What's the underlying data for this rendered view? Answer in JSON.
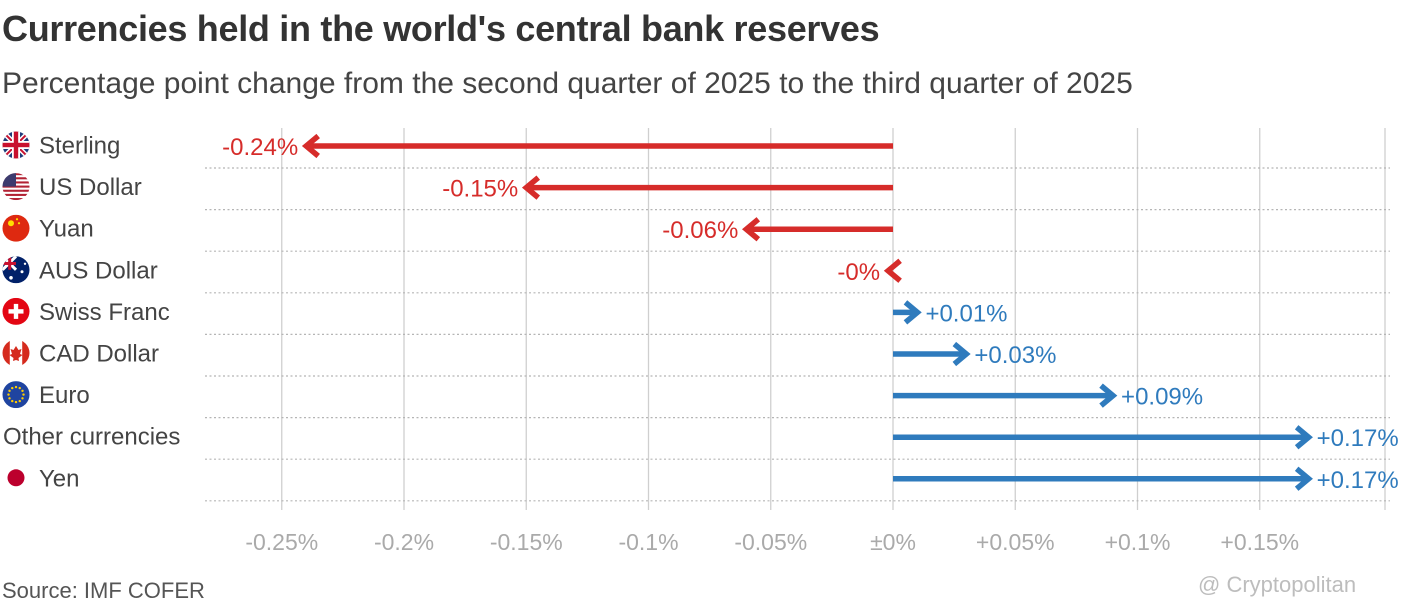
{
  "title": "Currencies held in the world's central bank reserves",
  "subtitle": "Percentage point change from the second quarter of 2025 to the third quarter of 2025",
  "source": "Source: IMF COFER",
  "watermark": "@ Cryptopolitan",
  "colors": {
    "negative": "#d62c2a",
    "positive": "#2f7bbd",
    "grid": "#cfcfcf",
    "tick": "#aaaaaa"
  },
  "chart_data": {
    "type": "bar",
    "orientation": "horizontal",
    "style": "arrow",
    "title": "Currencies held in the world's central bank reserves",
    "subtitle": "Percentage point change from the second quarter of 2025 to the third quarter of 2025",
    "categories": [
      {
        "label": "Sterling",
        "icon": "uk-flag-icon"
      },
      {
        "label": "US Dollar",
        "icon": "us-flag-icon"
      },
      {
        "label": "Yuan",
        "icon": "china-flag-icon"
      },
      {
        "label": "AUS Dollar",
        "icon": "australia-flag-icon"
      },
      {
        "label": "Swiss Franc",
        "icon": "swiss-flag-icon"
      },
      {
        "label": "CAD Dollar",
        "icon": "canada-flag-icon"
      },
      {
        "label": "Euro",
        "icon": "eu-flag-icon"
      },
      {
        "label": "Other currencies",
        "icon": ""
      },
      {
        "label": "Yen",
        "icon": "japan-flag-icon"
      }
    ],
    "values": [
      -0.24,
      -0.15,
      -0.06,
      -0.002,
      0.01,
      0.03,
      0.09,
      0.17,
      0.17
    ],
    "data_labels": [
      "-0.24%",
      "-0.15%",
      "-0.06%",
      "-0%",
      "+0.01%",
      "+0.03%",
      "+0.09%",
      "+0.17%",
      "+0.17%"
    ],
    "xlim": [
      -0.28,
      0.2
    ],
    "xticks": [
      {
        "value": -0.25,
        "label": "-0.25%"
      },
      {
        "value": -0.2,
        "label": "-0.2%"
      },
      {
        "value": -0.15,
        "label": "-0.15%"
      },
      {
        "value": -0.1,
        "label": "-0.1%"
      },
      {
        "value": -0.05,
        "label": "-0.05%"
      },
      {
        "value": 0,
        "label": "±0%"
      },
      {
        "value": 0.05,
        "label": "+0.05%"
      },
      {
        "value": 0.1,
        "label": "+0.1%"
      },
      {
        "value": 0.15,
        "label": "+0.15%"
      }
    ],
    "grid": true,
    "source": "Source: IMF COFER"
  }
}
